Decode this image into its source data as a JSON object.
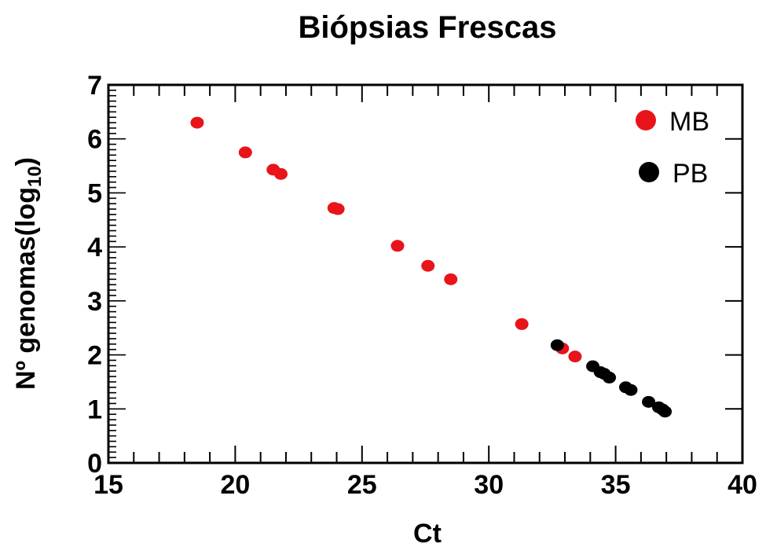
{
  "chart_data": {
    "type": "scatter",
    "title": "Biópsias Frescas",
    "xlabel": "Ct",
    "ylabel_main": "Nº genomas(log",
    "ylabel_sub": "10",
    "ylabel_close": ")",
    "xlim": [
      15,
      40
    ],
    "ylim": [
      0,
      7
    ],
    "x_ticks": [
      "15",
      "20",
      "25",
      "30",
      "35",
      "40"
    ],
    "y_ticks": [
      "0",
      "1",
      "2",
      "3",
      "4",
      "5",
      "6",
      "7"
    ],
    "grid": false,
    "legend_position": "top-right",
    "series": [
      {
        "name": "MB",
        "color": "#e8141a",
        "points": [
          [
            18.5,
            6.3
          ],
          [
            20.4,
            5.75
          ],
          [
            21.5,
            5.43
          ],
          [
            21.8,
            5.35
          ],
          [
            23.9,
            4.72
          ],
          [
            24.05,
            4.7
          ],
          [
            26.4,
            4.02
          ],
          [
            27.6,
            3.65
          ],
          [
            28.5,
            3.4
          ],
          [
            31.3,
            2.57
          ],
          [
            32.9,
            2.12
          ],
          [
            33.4,
            1.97
          ]
        ]
      },
      {
        "name": "PB",
        "color": "#000000",
        "points": [
          [
            32.7,
            2.18
          ],
          [
            34.1,
            1.79
          ],
          [
            34.4,
            1.68
          ],
          [
            34.55,
            1.65
          ],
          [
            34.75,
            1.58
          ],
          [
            35.4,
            1.4
          ],
          [
            35.6,
            1.35
          ],
          [
            36.3,
            1.13
          ],
          [
            36.7,
            1.03
          ],
          [
            36.85,
            0.99
          ],
          [
            36.95,
            0.95
          ]
        ]
      }
    ]
  }
}
